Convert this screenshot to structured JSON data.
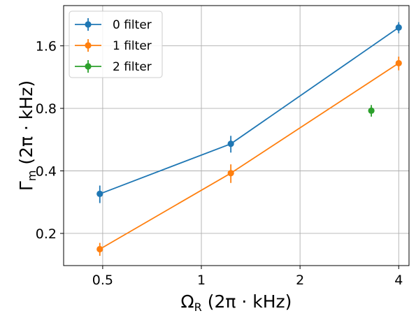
{
  "chart_data": {
    "type": "line",
    "x_scale": "log2",
    "y_scale": "log2",
    "xlim": [
      0.38,
      4.3
    ],
    "ylim": [
      0.14,
      2.5
    ],
    "x_ticks": [
      {
        "value": 0.5,
        "label": "0.5"
      },
      {
        "value": 1,
        "label": "1"
      },
      {
        "value": 2,
        "label": "2"
      },
      {
        "value": 4,
        "label": "4"
      }
    ],
    "y_ticks": [
      {
        "value": 0.2,
        "label": "0.2"
      },
      {
        "value": 0.4,
        "label": "0.4"
      },
      {
        "value": 0.8,
        "label": "0.8"
      },
      {
        "value": 1.6,
        "label": "1.6"
      }
    ],
    "xlabel": {
      "symbol": "Ω",
      "sub": "R",
      "unit": " (2π · kHz)"
    },
    "ylabel": {
      "symbol": "Γ",
      "sub": "m",
      "unit": " (2π · kHz)"
    },
    "grid": true,
    "legend_position": "top-left",
    "series": [
      {
        "name": "0 filter",
        "color": "#1f77b4",
        "connected": true,
        "points": [
          {
            "x": 0.49,
            "y": 0.31,
            "err": 0.03
          },
          {
            "x": 1.23,
            "y": 0.54,
            "err": 0.05
          },
          {
            "x": 4.0,
            "y": 1.96,
            "err": 0.12
          }
        ]
      },
      {
        "name": "1 filter",
        "color": "#ff7f0e",
        "connected": true,
        "points": [
          {
            "x": 0.49,
            "y": 0.168,
            "err": 0.012
          },
          {
            "x": 1.23,
            "y": 0.39,
            "err": 0.04
          },
          {
            "x": 4.0,
            "y": 1.32,
            "err": 0.1
          }
        ]
      },
      {
        "name": "2 filter",
        "color": "#2ca02c",
        "connected": false,
        "points": [
          {
            "x": 3.3,
            "y": 0.78,
            "err": 0.05
          }
        ]
      }
    ]
  }
}
